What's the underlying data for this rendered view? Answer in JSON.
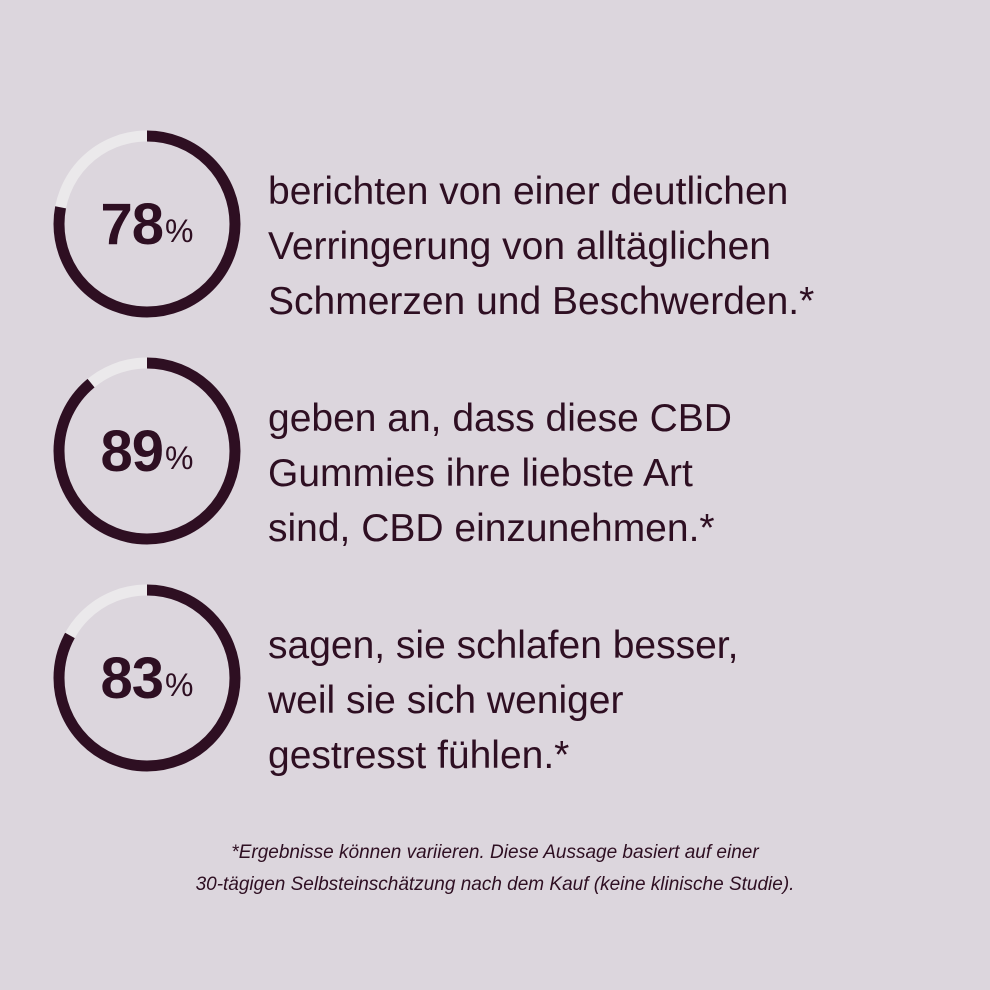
{
  "colors": {
    "background": "#dcd6dd",
    "ring_fill": "#2e0f22",
    "ring_track": "#ebe9eb",
    "text": "#2e0f22"
  },
  "stats": [
    {
      "percent": 78,
      "percent_sign": "%",
      "lines": [
        "berichten von einer deutlichen",
        "Verringerung von alltäglichen",
        "Schmerzen und Beschwerden.*"
      ]
    },
    {
      "percent": 89,
      "percent_sign": "%",
      "lines": [
        "geben an, dass diese CBD",
        "Gummies ihre liebste Art",
        "sind, CBD einzunehmen.*"
      ]
    },
    {
      "percent": 83,
      "percent_sign": "%",
      "lines": [
        "sagen, sie schlafen besser,",
        "weil sie sich weniger",
        "gestresst fühlen.*"
      ]
    }
  ],
  "footnote": {
    "lines": [
      "*Ergebnisse können variieren. Diese Aussage basiert auf einer",
      "30-tägigen Selbsteinschätzung nach dem Kauf (keine klinische Studie)."
    ]
  }
}
